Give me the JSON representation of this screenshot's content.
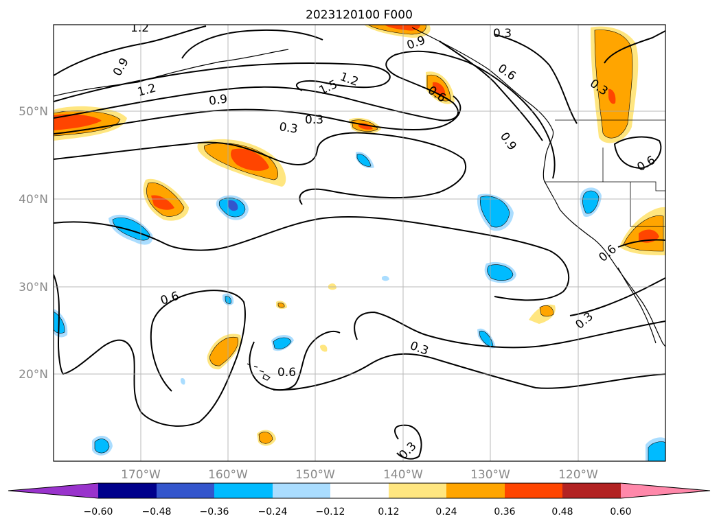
{
  "title": "2023120100 F000",
  "lon_axis": {
    "labels": [
      "170°W",
      "160°W",
      "150°W",
      "140°W",
      "130°W",
      "120°W"
    ],
    "gridline_count": 6,
    "label_color": "#888888"
  },
  "lat_axis": {
    "labels": [
      "50°N",
      "40°N",
      "30°N",
      "20°N"
    ],
    "gridline_count": 4,
    "label_color": "#888888"
  },
  "contour_labels": [
    {
      "text": "1.2"
    },
    {
      "text": "0.3"
    },
    {
      "text": "0.9"
    },
    {
      "text": "0.9"
    },
    {
      "text": "0.6"
    },
    {
      "text": "1.2"
    },
    {
      "text": "1.2"
    },
    {
      "text": "1.5"
    },
    {
      "text": "0.9"
    },
    {
      "text": "0.6"
    },
    {
      "text": "0.3"
    },
    {
      "text": "0.3"
    },
    {
      "text": "0.3"
    },
    {
      "text": "0.9"
    },
    {
      "text": "0.6"
    },
    {
      "text": "0.6"
    },
    {
      "text": "0.6"
    },
    {
      "text": "0.3"
    },
    {
      "text": "0.6"
    },
    {
      "text": "0.3"
    },
    {
      "text": "0.3"
    }
  ],
  "colorbar": {
    "ticks": [
      "−0.60",
      "−0.48",
      "−0.36",
      "−0.24",
      "−0.12",
      "0.12",
      "0.24",
      "0.36",
      "0.48",
      "0.60"
    ],
    "colors": [
      "#9933cc",
      "#00008b",
      "#3355cc",
      "#00bbff",
      "#aaddff",
      "#ffffff",
      "#ffe680",
      "#ffa500",
      "#ff4500",
      "#b22222",
      "#ff88aa"
    ]
  },
  "shading_colors": {
    "neg_light": "#aaddff",
    "neg_mid": "#00bbff",
    "neg_strong": "#3355cc",
    "pos_light": "#ffe680",
    "pos_mid": "#ffa500",
    "pos_strong": "#ff4500"
  }
}
